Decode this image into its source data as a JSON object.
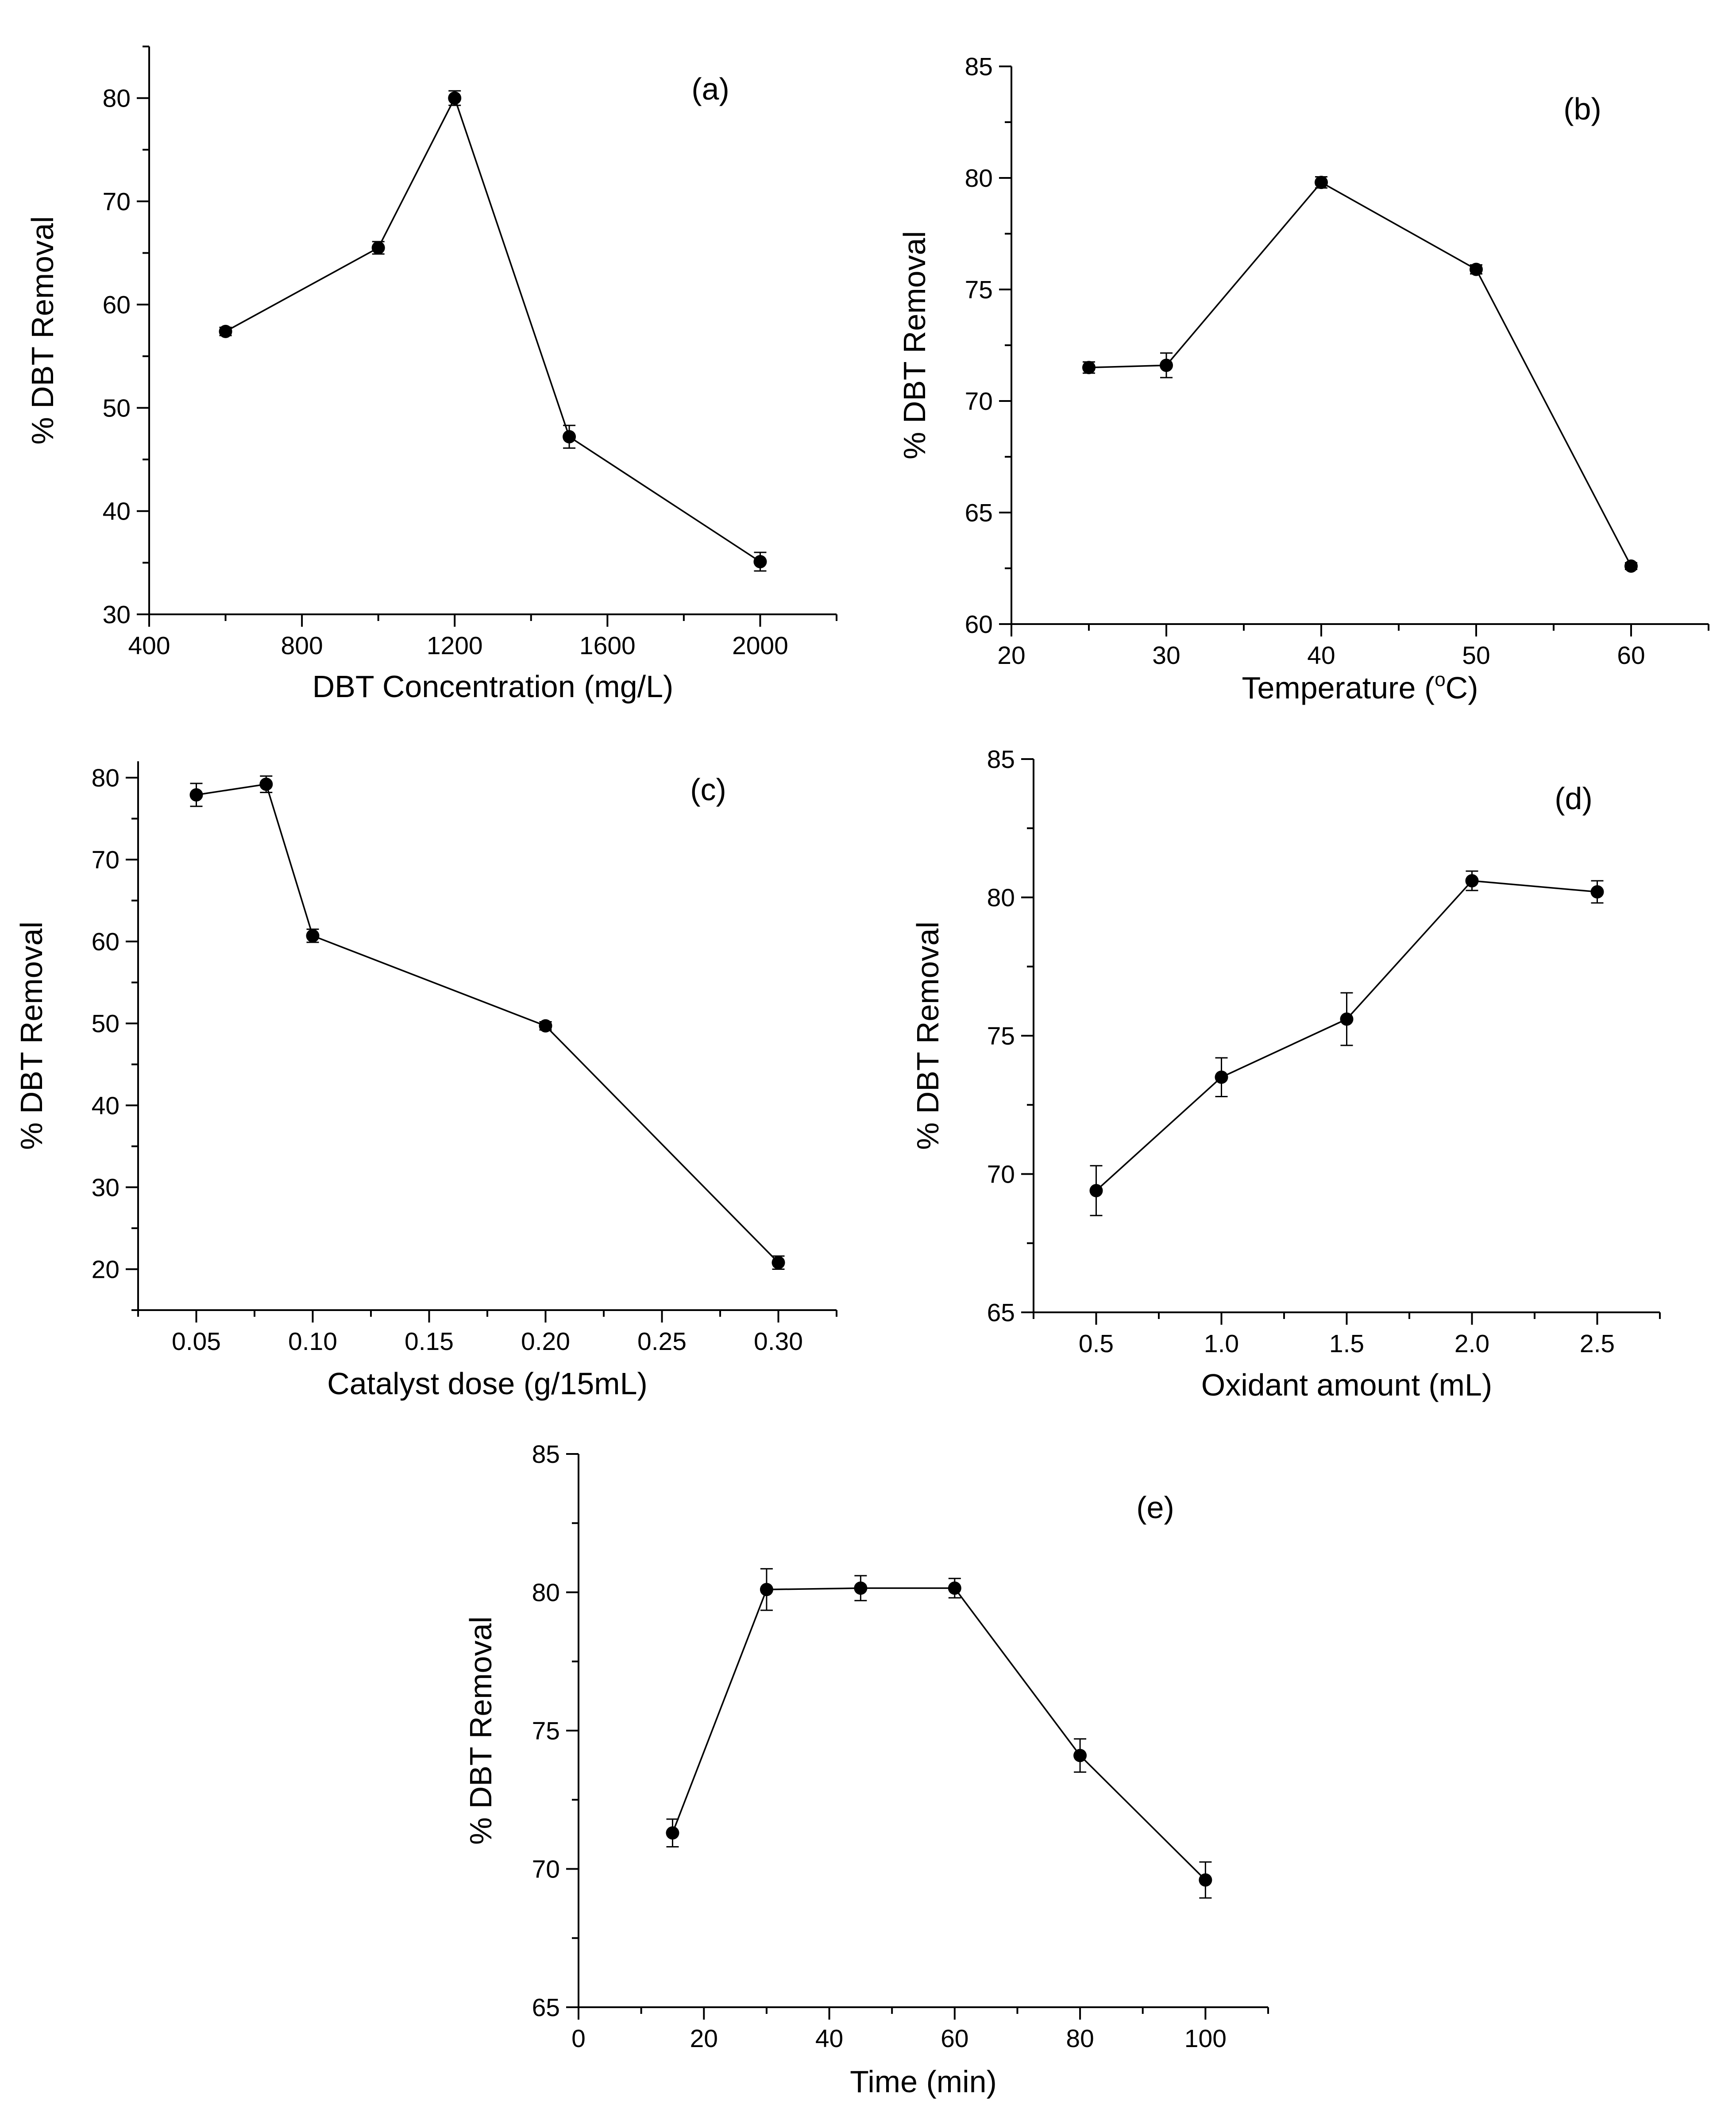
{
  "chart_data": [
    {
      "id": "a",
      "type": "line",
      "panel_label": "(a)",
      "xlabel": "DBT Concentration (mg/L)",
      "ylabel": "% DBT Removal",
      "xlim": [
        400,
        2200
      ],
      "ylim": [
        30,
        85
      ],
      "xticks": [
        400,
        800,
        1200,
        1600,
        2000
      ],
      "yticks": [
        30,
        40,
        50,
        60,
        70,
        80
      ],
      "xtick_labels": [
        "400",
        "800",
        "1200",
        "1600",
        "2000"
      ],
      "ytick_labels": [
        "30",
        "40",
        "50",
        "60",
        "70",
        "80"
      ],
      "x": [
        600,
        1000,
        1200,
        1500,
        2000
      ],
      "y": [
        57.4,
        65.5,
        80.0,
        47.2,
        35.1
      ],
      "yerr": [
        0.4,
        0.6,
        0.7,
        1.1,
        0.9
      ]
    },
    {
      "id": "b",
      "type": "line",
      "panel_label": "(b)",
      "xlabel": "Temperature (",
      "xlabel_sup": "o",
      "xlabel_end": "C)",
      "ylabel": "% DBT Removal",
      "xlim": [
        20,
        65
      ],
      "ylim": [
        60,
        85
      ],
      "xticks": [
        20,
        30,
        40,
        50,
        60
      ],
      "yticks": [
        60,
        65,
        70,
        75,
        80,
        85
      ],
      "xtick_labels": [
        "20",
        "30",
        "40",
        "50",
        "60"
      ],
      "ytick_labels": [
        "60",
        "65",
        "70",
        "75",
        "80",
        "85"
      ],
      "x": [
        25,
        30,
        40,
        50,
        60
      ],
      "y": [
        71.5,
        71.6,
        79.8,
        75.9,
        62.6
      ],
      "yerr": [
        0.25,
        0.55,
        0.25,
        0.2,
        0.15
      ]
    },
    {
      "id": "c",
      "type": "line",
      "panel_label": "(c)",
      "xlabel": "Catalyst dose (g/15mL)",
      "ylabel": "% DBT Removal",
      "xlim": [
        0.025,
        0.325
      ],
      "ylim": [
        15,
        82
      ],
      "xticks": [
        0.05,
        0.1,
        0.15,
        0.2,
        0.25,
        0.3
      ],
      "yticks": [
        20,
        30,
        40,
        50,
        60,
        70,
        80
      ],
      "xtick_labels": [
        "0.05",
        "0.10",
        "0.15",
        "0.20",
        "0.25",
        "0.30"
      ],
      "ytick_labels": [
        "20",
        "30",
        "40",
        "50",
        "60",
        "70",
        "80"
      ],
      "x": [
        0.05,
        0.08,
        0.1,
        0.2,
        0.3
      ],
      "y": [
        77.9,
        79.2,
        60.7,
        49.7,
        20.8
      ],
      "yerr": [
        1.4,
        1.0,
        0.8,
        0.5,
        0.8
      ]
    },
    {
      "id": "d",
      "type": "line",
      "panel_label": "(d)",
      "xlabel": "Oxidant amount (mL)",
      "ylabel": "% DBT Removal",
      "xlim": [
        0.25,
        2.75
      ],
      "ylim": [
        65,
        85
      ],
      "xticks": [
        0.5,
        1.0,
        1.5,
        2.0,
        2.5
      ],
      "yticks": [
        65,
        70,
        75,
        80,
        85
      ],
      "xtick_labels": [
        "0.5",
        "1.0",
        "1.5",
        "2.0",
        "2.5"
      ],
      "ytick_labels": [
        "65",
        "70",
        "75",
        "80",
        "85"
      ],
      "x": [
        0.5,
        1.0,
        1.5,
        2.0,
        2.5
      ],
      "y": [
        69.4,
        73.5,
        75.6,
        80.6,
        80.2
      ],
      "yerr": [
        0.9,
        0.7,
        0.95,
        0.35,
        0.4
      ]
    },
    {
      "id": "e",
      "type": "line",
      "panel_label": "(e)",
      "xlabel": "Time (min)",
      "ylabel": "% DBT Removal",
      "xlim": [
        0,
        110
      ],
      "ylim": [
        65,
        85
      ],
      "xticks": [
        0,
        20,
        40,
        60,
        80,
        100
      ],
      "yticks": [
        65,
        70,
        75,
        80,
        85
      ],
      "xtick_labels": [
        "0",
        "20",
        "40",
        "60",
        "80",
        "100"
      ],
      "ytick_labels": [
        "65",
        "70",
        "75",
        "80",
        "85"
      ],
      "x": [
        15,
        30,
        45,
        60,
        80,
        100
      ],
      "y": [
        71.3,
        80.1,
        80.15,
        80.15,
        74.1,
        69.6
      ],
      "yerr": [
        0.5,
        0.75,
        0.45,
        0.35,
        0.6,
        0.65
      ]
    }
  ]
}
